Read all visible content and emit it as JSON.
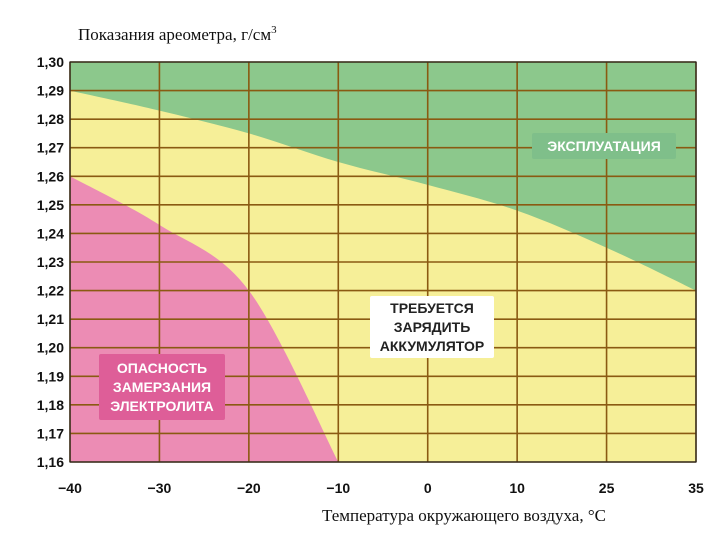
{
  "chart_data": {
    "type": "area",
    "ylabel": "Показания ареометра, г/см",
    "ylabel_superscript": "3",
    "xlabel": "Температура окружающего воздуха, °С",
    "x_ticks": [
      "−40",
      "−30",
      "−20",
      "−10",
      "0",
      "10",
      "25",
      "35"
    ],
    "y_ticks": [
      "1,30",
      "1,29",
      "1,28",
      "1,27",
      "1,26",
      "1,25",
      "1,24",
      "1,23",
      "1,22",
      "1,21",
      "1,20",
      "1,19",
      "1,18",
      "1,17",
      "1,16"
    ],
    "ylim": [
      1.16,
      1.3
    ],
    "zones": [
      {
        "name": "ЭКСПЛУАТАЦИЯ",
        "label_lines": [
          "ЭКСПЛУАТАЦИЯ"
        ],
        "color": "#8cc88c",
        "label_bg": "#7fbf8a",
        "label_color": "#ffffff",
        "lower_boundary": [
          {
            "x": "−40",
            "y": 1.29
          },
          {
            "x": "−30",
            "y": 1.283
          },
          {
            "x": "−20",
            "y": 1.275
          },
          {
            "x": "−10",
            "y": 1.265
          },
          {
            "x": "0",
            "y": 1.257
          },
          {
            "x": "10",
            "y": 1.248
          },
          {
            "x": "25",
            "y": 1.235
          },
          {
            "x": "35",
            "y": 1.22
          }
        ]
      },
      {
        "name": "ТРЕБУЕТСЯ ЗАРЯДИТЬ АККУМУЛЯТОР",
        "label_lines": [
          "ТРЕБУЕТСЯ",
          "ЗАРЯДИТЬ",
          "АККУМУЛЯТОР"
        ],
        "color": "#f6ef98",
        "label_bg": "#ffffff",
        "label_color": "#222222"
      },
      {
        "name": "ОПАСНОСТЬ ЗАМЕРЗАНИЯ ЭЛЕКТРОЛИТА",
        "label_lines": [
          "ОПАСНОСТЬ",
          "ЗАМЕРЗАНИЯ",
          "ЭЛЕКТРОЛИТА"
        ],
        "color": "#ec8cb4",
        "label_bg": "#de5e98",
        "label_color": "#ffffff",
        "upper_boundary": [
          {
            "x": "−40",
            "y": 1.26
          },
          {
            "x": "−30",
            "y": 1.243
          },
          {
            "x": "−20",
            "y": 1.22
          },
          {
            "x": "−10",
            "y": 1.16
          }
        ]
      }
    ],
    "grid": true,
    "grid_color": "#8a5a12"
  }
}
